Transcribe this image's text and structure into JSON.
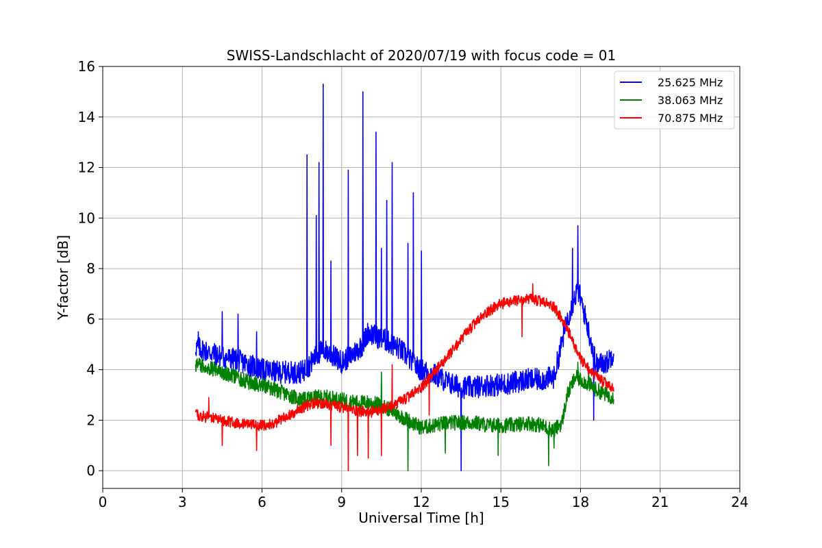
{
  "chart_data": {
    "type": "line",
    "title": "SWISS-Landschlacht of 2020/07/19 with focus code = 01",
    "xlabel": "Universal Time [h]",
    "ylabel": "Y-factor [dB]",
    "xlim": [
      0,
      24
    ],
    "ylim": [
      -0.7,
      16
    ],
    "xticks": [
      0,
      3,
      6,
      9,
      12,
      15,
      18,
      21,
      24
    ],
    "yticks": [
      0,
      2,
      4,
      6,
      8,
      10,
      12,
      14,
      16
    ],
    "grid": true,
    "legend_position": "top-right",
    "series": [
      {
        "name": "25.625 MHz",
        "color": "#0000ff",
        "x": [
          3.5,
          4.0,
          4.5,
          5.0,
          5.5,
          6.0,
          6.5,
          7.0,
          7.5,
          7.8,
          8.0,
          8.3,
          8.6,
          9.0,
          9.3,
          9.6,
          9.8,
          10.0,
          10.3,
          10.6,
          10.9,
          11.2,
          11.5,
          11.7,
          12.0,
          12.5,
          13.0,
          13.5,
          14.0,
          14.5,
          15.0,
          15.5,
          16.0,
          16.5,
          17.0,
          17.5,
          17.9,
          18.2,
          18.6,
          19.0,
          19.25
        ],
        "y": [
          4.9,
          4.7,
          4.5,
          4.4,
          4.2,
          4.0,
          3.9,
          3.9,
          3.9,
          4.2,
          4.5,
          4.8,
          4.6,
          4.3,
          4.5,
          4.8,
          5.0,
          5.5,
          5.3,
          5.2,
          5.0,
          4.8,
          4.5,
          4.2,
          4.0,
          3.8,
          3.5,
          3.3,
          3.3,
          3.4,
          3.4,
          3.5,
          3.6,
          3.6,
          3.7,
          6.0,
          7.2,
          6.0,
          4.2,
          4.3,
          4.7
        ],
        "noise": 0.45,
        "spikes": [
          {
            "x": 3.6,
            "y": 5.5
          },
          {
            "x": 4.5,
            "y": 6.3
          },
          {
            "x": 5.1,
            "y": 6.2
          },
          {
            "x": 5.8,
            "y": 5.5
          },
          {
            "x": 7.7,
            "y": 12.5
          },
          {
            "x": 8.05,
            "y": 10.1
          },
          {
            "x": 8.15,
            "y": 12.2
          },
          {
            "x": 8.3,
            "y": 15.3
          },
          {
            "x": 8.6,
            "y": 8.3
          },
          {
            "x": 9.25,
            "y": 11.9
          },
          {
            "x": 9.8,
            "y": 15.0
          },
          {
            "x": 10.3,
            "y": 13.4
          },
          {
            "x": 10.5,
            "y": 8.8
          },
          {
            "x": 10.7,
            "y": 10.7
          },
          {
            "x": 10.9,
            "y": 12.2
          },
          {
            "x": 11.5,
            "y": 9.0
          },
          {
            "x": 11.7,
            "y": 11.0
          },
          {
            "x": 12.0,
            "y": 8.7
          },
          {
            "x": 17.9,
            "y": 9.7
          },
          {
            "x": 17.7,
            "y": 8.8
          },
          {
            "x": 13.5,
            "y": 0.0
          },
          {
            "x": 18.5,
            "y": 2.0
          }
        ]
      },
      {
        "name": "38.063 MHz",
        "color": "#008000",
        "x": [
          3.5,
          4.0,
          4.5,
          5.0,
          5.5,
          6.0,
          6.5,
          7.0,
          7.5,
          8.0,
          8.5,
          9.0,
          9.5,
          10.0,
          10.5,
          11.0,
          11.5,
          12.0,
          12.5,
          13.0,
          13.5,
          14.0,
          14.5,
          15.0,
          15.5,
          16.0,
          16.5,
          17.0,
          17.3,
          17.5,
          17.8,
          18.2,
          18.6,
          19.0,
          19.25
        ],
        "y": [
          4.2,
          4.1,
          3.9,
          3.7,
          3.5,
          3.4,
          3.2,
          3.0,
          2.8,
          2.9,
          2.9,
          2.8,
          2.7,
          2.7,
          2.6,
          2.3,
          2.0,
          1.7,
          1.8,
          1.9,
          1.9,
          1.9,
          1.8,
          1.8,
          1.8,
          1.9,
          1.8,
          1.6,
          1.9,
          3.0,
          3.7,
          3.5,
          3.2,
          3.0,
          2.9
        ],
        "noise": 0.3,
        "spikes": [
          {
            "x": 11.5,
            "y": 0.0
          },
          {
            "x": 12.9,
            "y": 0.7
          },
          {
            "x": 14.9,
            "y": 0.6
          },
          {
            "x": 16.8,
            "y": 0.2
          },
          {
            "x": 17.0,
            "y": 0.9
          },
          {
            "x": 10.5,
            "y": 3.9
          },
          {
            "x": 17.9,
            "y": 4.3
          },
          {
            "x": 18.3,
            "y": 4.1
          }
        ]
      },
      {
        "name": "70.875 MHz",
        "color": "#ff0000",
        "x": [
          3.5,
          4.0,
          4.5,
          5.0,
          5.5,
          6.0,
          6.5,
          7.0,
          7.5,
          8.0,
          8.5,
          9.0,
          9.5,
          10.0,
          10.5,
          11.0,
          11.5,
          12.0,
          12.5,
          13.0,
          13.5,
          14.0,
          14.5,
          15.0,
          15.5,
          16.0,
          16.5,
          17.0,
          17.5,
          18.0,
          18.5,
          19.0,
          19.25
        ],
        "y": [
          2.2,
          2.1,
          2.0,
          1.9,
          1.8,
          1.8,
          1.9,
          2.2,
          2.5,
          2.7,
          2.6,
          2.5,
          2.4,
          2.3,
          2.4,
          2.6,
          2.9,
          3.3,
          3.9,
          4.5,
          5.2,
          5.8,
          6.3,
          6.6,
          6.7,
          6.8,
          6.7,
          6.5,
          5.6,
          4.4,
          3.8,
          3.4,
          3.2
        ],
        "noise": 0.22,
        "spikes": [
          {
            "x": 4.0,
            "y": 2.9
          },
          {
            "x": 4.5,
            "y": 1.0
          },
          {
            "x": 5.8,
            "y": 0.8
          },
          {
            "x": 8.6,
            "y": 1.0
          },
          {
            "x": 9.25,
            "y": 0.0
          },
          {
            "x": 9.6,
            "y": 0.6
          },
          {
            "x": 10.0,
            "y": 0.5
          },
          {
            "x": 10.5,
            "y": 0.6
          },
          {
            "x": 10.9,
            "y": 4.2
          },
          {
            "x": 12.3,
            "y": 2.2
          },
          {
            "x": 16.2,
            "y": 7.4
          },
          {
            "x": 15.8,
            "y": 5.3
          }
        ]
      }
    ]
  }
}
